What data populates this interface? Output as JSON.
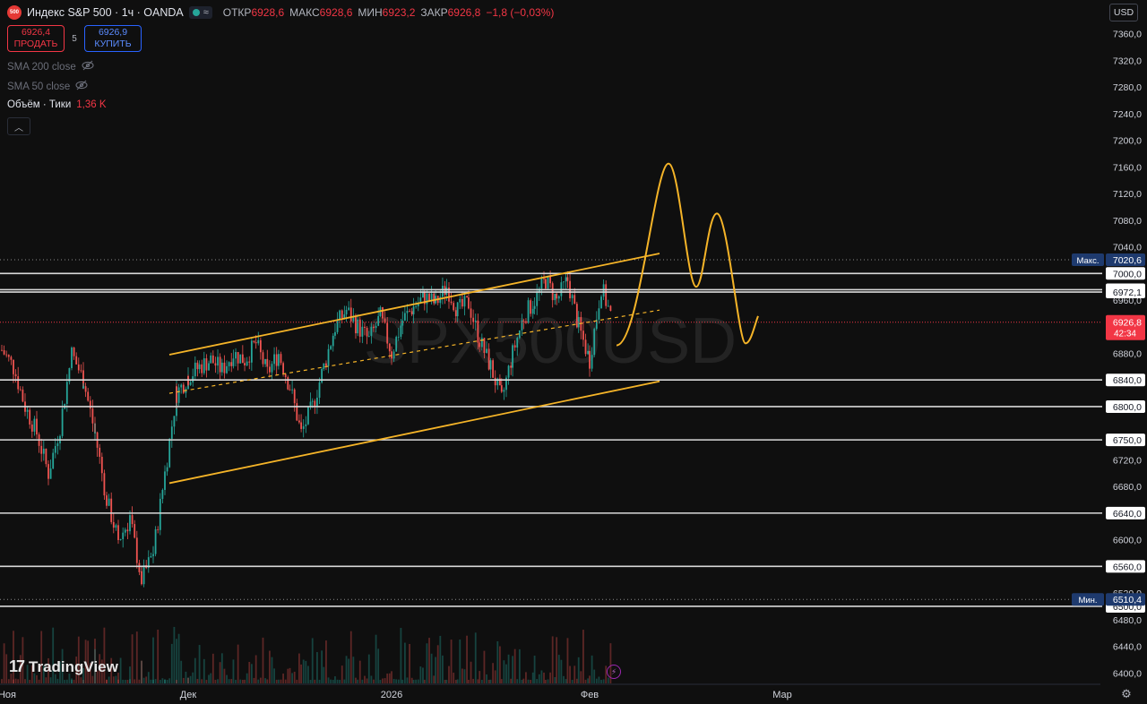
{
  "header": {
    "symbol_badge": "500",
    "title": "Индекс S&P 500 · 1ч · OANDA",
    "ohlc": [
      {
        "label": "ОТКР",
        "value": "6928,6"
      },
      {
        "label": "МАКС",
        "value": "6928,6"
      },
      {
        "label": "МИН",
        "value": "6923,2"
      },
      {
        "label": "ЗАКР",
        "value": "6926,8"
      },
      {
        "label": "",
        "value": "−1,8 (−0,03%)"
      }
    ]
  },
  "trade": {
    "sell_price": "6926,4",
    "sell_label": "ПРОДАТЬ",
    "spread": "5",
    "buy_price": "6926,9",
    "buy_label": "КУПИТЬ"
  },
  "indicators": [
    {
      "label": "SMA 200 close",
      "hidden": true
    },
    {
      "label": "SMA 50 close",
      "hidden": true
    }
  ],
  "volume": {
    "label": "Объём · Тики",
    "value": "1,36 K"
  },
  "currency": {
    "label": "USD"
  },
  "watermark": "SPX500USD",
  "logo": {
    "text": "TradingView"
  },
  "colors": {
    "up": "#26a69a",
    "down": "#ef5350",
    "drawing": "#f5b428",
    "accent_red": "#f23645",
    "accent_blue": "#2962ff"
  },
  "chart_data": {
    "type": "candlestick",
    "interval": "1h",
    "y_axis": {
      "min": 6360,
      "max": 7400,
      "ticks": [
        "7360,0",
        "7320,0",
        "7280,0",
        "7240,0",
        "7200,0",
        "7160,0",
        "7120,0",
        "7080,0",
        "7040,0",
        "6960,0",
        "6920,0",
        "6880,0",
        "6720,0",
        "6680,0",
        "6600,0",
        "6520,0",
        "6480,0",
        "6440,0",
        "6400,0"
      ]
    },
    "x_axis": {
      "labels": [
        "Ноя",
        "Дек",
        "2026",
        "Фев",
        "Мар"
      ]
    },
    "horizontal_levels": [
      "7000,0",
      "6975,6",
      "6972,1",
      "6840,0",
      "6800,0",
      "6750,0",
      "6640,0",
      "6560,0",
      "6500,0"
    ],
    "dotted_levels": [
      "7020,6",
      "6510,4"
    ],
    "price_tags": {
      "max_label": "Макс.",
      "max_value": "7020,6",
      "min_label": "Мин.",
      "min_value": "6510,4",
      "last_price": "6926,8",
      "countdown": "42:34"
    },
    "close_path": [
      {
        "t": "Ноя",
        "v": 6885
      },
      {
        "v": 6860
      },
      {
        "v": 6800
      },
      {
        "v": 6760
      },
      {
        "v": 6700
      },
      {
        "v": 6770
      },
      {
        "v": 6880
      },
      {
        "v": 6840
      },
      {
        "v": 6760
      },
      {
        "v": 6660
      },
      {
        "v": 6600
      },
      {
        "v": 6630
      },
      {
        "v": 6540
      },
      {
        "v": 6580
      },
      {
        "v": 6700
      },
      {
        "v": 6820
      },
      {
        "t": "Дек",
        "v": 6845
      },
      {
        "v": 6860
      },
      {
        "v": 6870
      },
      {
        "v": 6855
      },
      {
        "v": 6880
      },
      {
        "v": 6870
      },
      {
        "v": 6895
      },
      {
        "v": 6850
      },
      {
        "v": 6880
      },
      {
        "v": 6830
      },
      {
        "v": 6760
      },
      {
        "v": 6800
      },
      {
        "v": 6860
      },
      {
        "v": 6920
      },
      {
        "v": 6945
      },
      {
        "v": 6920
      },
      {
        "v": 6900
      },
      {
        "v": 6935
      },
      {
        "t": "2026",
        "v": 6880
      },
      {
        "v": 6930
      },
      {
        "v": 6950
      },
      {
        "v": 6965
      },
      {
        "v": 6955
      },
      {
        "v": 6980
      },
      {
        "v": 6945
      },
      {
        "v": 6955
      },
      {
        "v": 6900
      },
      {
        "v": 6860
      },
      {
        "v": 6810
      },
      {
        "v": 6880
      },
      {
        "v": 6935
      },
      {
        "v": 6960
      },
      {
        "v": 6990
      },
      {
        "v": 6960
      },
      {
        "v": 6990
      },
      {
        "v": 6920
      },
      {
        "t": "Фев",
        "v": 6870
      },
      {
        "v": 6980
      },
      {
        "v": 6926.8
      }
    ],
    "drawings": {
      "channel_upper": [
        {
          "t": "Дек−",
          "v": 6878
        },
        {
          "t": "Фев+",
          "v": 7030
        }
      ],
      "channel_lower": [
        {
          "t": "Дек−",
          "v": 6685
        },
        {
          "t": "Фев+",
          "v": 6838
        }
      ],
      "midline_dashed": [
        {
          "t": "Дек−",
          "v": 6820
        },
        {
          "t": "Фев+",
          "v": 6945
        }
      ],
      "forecast_curve": [
        6892,
        7165,
        6980,
        7090,
        6895,
        6936
      ]
    }
  }
}
